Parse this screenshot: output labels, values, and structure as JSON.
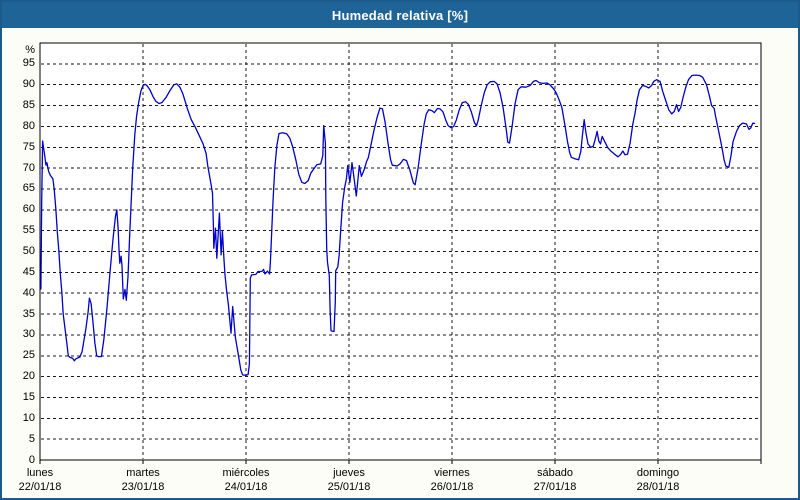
{
  "window": {
    "title": "Humedad relativa [%]"
  },
  "colors": {
    "titlebar": "#1e6496",
    "window_border": "#1b5a8a",
    "background": "#fbfdf6",
    "plot_background": "#ffffff",
    "plot_border": "#000000",
    "grid": "#1a1a1a",
    "line": "#0000cc",
    "label_text": "#000000",
    "title_text": "#ffffff"
  },
  "chart_data": {
    "type": "line",
    "title": "Humedad relativa [%]",
    "unit_label": "%",
    "ylabel": "%",
    "ylim": [
      0,
      100
    ],
    "xlim_hours": [
      0,
      168
    ],
    "y_tick_step": 5,
    "y_ticks": [
      0,
      5,
      10,
      15,
      20,
      25,
      30,
      35,
      40,
      45,
      50,
      55,
      60,
      65,
      70,
      75,
      80,
      85,
      90,
      95
    ],
    "grid": "dashed",
    "legend": "none",
    "x_day_labels": [
      {
        "day": "lunes",
        "date": "22/01/18"
      },
      {
        "day": "martes",
        "date": "23/01/18"
      },
      {
        "day": "miércoles",
        "date": "24/01/18"
      },
      {
        "day": "jueves",
        "date": "25/01/18"
      },
      {
        "day": "viernes",
        "date": "26/01/18"
      },
      {
        "day": "sábado",
        "date": "27/01/18"
      },
      {
        "day": "domingo",
        "date": "28/01/18"
      }
    ],
    "series": [
      {
        "name": "Humedad relativa",
        "color": "#0000cc",
        "points": [
          [
            0.2,
            41
          ],
          [
            0.4,
            62
          ],
          [
            0.6,
            76.5
          ],
          [
            1.1,
            73
          ],
          [
            1.4,
            70.7
          ],
          [
            1.6,
            71.3
          ],
          [
            2.0,
            69.2
          ],
          [
            2.4,
            68.3
          ],
          [
            3.0,
            67.4
          ],
          [
            3.3,
            65
          ],
          [
            3.7,
            60
          ],
          [
            4.0,
            55
          ],
          [
            4.4,
            50
          ],
          [
            4.7,
            45
          ],
          [
            5.1,
            40
          ],
          [
            5.4,
            35
          ],
          [
            6.0,
            30
          ],
          [
            6.6,
            25
          ],
          [
            7.0,
            24.6
          ],
          [
            7.6,
            24.4
          ],
          [
            8.0,
            23.8
          ],
          [
            8.4,
            24.3
          ],
          [
            9.3,
            24.7
          ],
          [
            9.8,
            26
          ],
          [
            10.2,
            28.5
          ],
          [
            10.7,
            31.5
          ],
          [
            11.2,
            35.5
          ],
          [
            11.5,
            38.8
          ],
          [
            11.9,
            37.5
          ],
          [
            12.3,
            33.5
          ],
          [
            12.8,
            28
          ],
          [
            13.2,
            25
          ],
          [
            13.6,
            24.8
          ],
          [
            14.3,
            24.8
          ],
          [
            14.9,
            29
          ],
          [
            15.6,
            36.5
          ],
          [
            16.3,
            45
          ],
          [
            17.0,
            53
          ],
          [
            17.6,
            58.5
          ],
          [
            17.9,
            60
          ],
          [
            18.2,
            55.6
          ],
          [
            18.4,
            50.5
          ],
          [
            18.6,
            47.2
          ],
          [
            18.9,
            48.9
          ],
          [
            19.1,
            46.5
          ],
          [
            19.4,
            38.6
          ],
          [
            19.8,
            40.9
          ],
          [
            20.1,
            38.3
          ],
          [
            20.5,
            44
          ],
          [
            20.9,
            54
          ],
          [
            21.3,
            63
          ],
          [
            21.6,
            70
          ],
          [
            22.1,
            78
          ],
          [
            22.5,
            82.5
          ],
          [
            23.0,
            85.8
          ],
          [
            23.5,
            88.5
          ],
          [
            24.0,
            89.8
          ],
          [
            24.5,
            90.1
          ],
          [
            24.9,
            89.8
          ],
          [
            25.6,
            88.8
          ],
          [
            26.3,
            87.2
          ],
          [
            27.0,
            86.0
          ],
          [
            27.7,
            85.5
          ],
          [
            28.4,
            85.7
          ],
          [
            29.4,
            87.0
          ],
          [
            30.3,
            88.6
          ],
          [
            31.2,
            90.0
          ],
          [
            31.9,
            90.2
          ],
          [
            32.6,
            89.4
          ],
          [
            33.3,
            87.8
          ],
          [
            34.3,
            84.4
          ],
          [
            35.2,
            81.7
          ],
          [
            36.1,
            80.0
          ],
          [
            37.0,
            78.0
          ],
          [
            38.0,
            75.8
          ],
          [
            38.7,
            73.5
          ],
          [
            39.1,
            70.5
          ],
          [
            39.7,
            67
          ],
          [
            40.2,
            64
          ],
          [
            40.4,
            56
          ],
          [
            40.5,
            50.8
          ],
          [
            40.9,
            55.6
          ],
          [
            41.2,
            48.4
          ],
          [
            41.8,
            59.2
          ],
          [
            42.2,
            49.2
          ],
          [
            42.5,
            54.8
          ],
          [
            42.9,
            47.6
          ],
          [
            43.1,
            44.4
          ],
          [
            43.5,
            40.4
          ],
          [
            43.9,
            37.2
          ],
          [
            44.5,
            30.4
          ],
          [
            44.9,
            36.8
          ],
          [
            45.5,
            29.5
          ],
          [
            46.1,
            26
          ],
          [
            46.8,
            21.6
          ],
          [
            47.2,
            20.4
          ],
          [
            48.0,
            20.3
          ],
          [
            48.5,
            20.5
          ],
          [
            48.8,
            23
          ],
          [
            49.0,
            43.6
          ],
          [
            49.3,
            44.4
          ],
          [
            50.3,
            44.5
          ],
          [
            50.8,
            45.2
          ],
          [
            51.7,
            45.2
          ],
          [
            52.1,
            45.7
          ],
          [
            52.4,
            44.6
          ],
          [
            53.0,
            45.3
          ],
          [
            53.5,
            44.6
          ],
          [
            53.7,
            48
          ],
          [
            53.9,
            52.5
          ],
          [
            54.3,
            62
          ],
          [
            54.7,
            70
          ],
          [
            55.2,
            75.5
          ],
          [
            55.7,
            78.3
          ],
          [
            56.6,
            78.5
          ],
          [
            57.5,
            78.2
          ],
          [
            58.2,
            77.2
          ],
          [
            58.9,
            75
          ],
          [
            59.6,
            72
          ],
          [
            60.3,
            68.5
          ],
          [
            61.0,
            66.6
          ],
          [
            61.7,
            66.3
          ],
          [
            62.5,
            67
          ],
          [
            63.1,
            68.8
          ],
          [
            63.8,
            69.8
          ],
          [
            64.5,
            70.8
          ],
          [
            65.4,
            71.0
          ],
          [
            65.9,
            73
          ],
          [
            66.1,
            80.2
          ],
          [
            66.5,
            76
          ],
          [
            66.6,
            63
          ],
          [
            66.8,
            50.6
          ],
          [
            67.0,
            47.4
          ],
          [
            67.4,
            44.2
          ],
          [
            67.6,
            36
          ],
          [
            67.8,
            31
          ],
          [
            68.5,
            30.8
          ],
          [
            68.8,
            38
          ],
          [
            68.9,
            45.4
          ],
          [
            69.4,
            46.3
          ],
          [
            69.7,
            49
          ],
          [
            70.0,
            54
          ],
          [
            70.5,
            61.8
          ],
          [
            71.0,
            65.4
          ],
          [
            71.4,
            67.4
          ],
          [
            71.7,
            70.6
          ],
          [
            72.2,
            66.6
          ],
          [
            72.7,
            71.3
          ],
          [
            73.2,
            67.5
          ],
          [
            73.7,
            63.3
          ],
          [
            74.4,
            70.6
          ],
          [
            74.9,
            68.0
          ],
          [
            75.5,
            69.5
          ],
          [
            76.1,
            71.6
          ],
          [
            76.5,
            72.5
          ],
          [
            77.1,
            75.5
          ],
          [
            77.8,
            79
          ],
          [
            78.5,
            82
          ],
          [
            79.2,
            84.4
          ],
          [
            79.8,
            84.2
          ],
          [
            80.4,
            81
          ],
          [
            81.1,
            75.8
          ],
          [
            81.7,
            72
          ],
          [
            82.1,
            70.7
          ],
          [
            83.2,
            70.5
          ],
          [
            83.9,
            71
          ],
          [
            84.7,
            72.1
          ],
          [
            85.4,
            71.8
          ],
          [
            86.2,
            69.5
          ],
          [
            87.0,
            66.4
          ],
          [
            87.4,
            66.0
          ],
          [
            88.1,
            70
          ],
          [
            88.8,
            75.5
          ],
          [
            89.5,
            80.5
          ],
          [
            90.0,
            83
          ],
          [
            90.6,
            84.0
          ],
          [
            91.3,
            83.8
          ],
          [
            91.9,
            83.3
          ],
          [
            92.6,
            84.3
          ],
          [
            93.2,
            84.2
          ],
          [
            93.9,
            83.5
          ],
          [
            94.5,
            81.6
          ],
          [
            95.1,
            80.2
          ],
          [
            95.8,
            79.7
          ],
          [
            96.4,
            80.0
          ],
          [
            97.0,
            81.5
          ],
          [
            97.7,
            84
          ],
          [
            98.4,
            85.7
          ],
          [
            99.2,
            85.9
          ],
          [
            99.8,
            85.3
          ],
          [
            100.5,
            83.5
          ],
          [
            101.2,
            81
          ],
          [
            101.7,
            80.1
          ],
          [
            102.1,
            81.5
          ],
          [
            102.8,
            85
          ],
          [
            103.5,
            88
          ],
          [
            104.2,
            90
          ],
          [
            104.9,
            90.7
          ],
          [
            105.8,
            90.8
          ],
          [
            106.5,
            90.2
          ],
          [
            107.2,
            88
          ],
          [
            107.9,
            84.5
          ],
          [
            108.6,
            79.5
          ],
          [
            109.0,
            76.2
          ],
          [
            109.4,
            76.0
          ],
          [
            110.0,
            80
          ],
          [
            110.7,
            85.5
          ],
          [
            111.4,
            88.8
          ],
          [
            112.1,
            89.5
          ],
          [
            113.2,
            89.4
          ],
          [
            114.2,
            89.8
          ],
          [
            115.0,
            90.8
          ],
          [
            115.6,
            91.0
          ],
          [
            116.3,
            90.5
          ],
          [
            117.2,
            90.3
          ],
          [
            118.1,
            90.4
          ],
          [
            118.8,
            90.0
          ],
          [
            119.5,
            89.2
          ],
          [
            120.2,
            88.2
          ],
          [
            120.9,
            86.5
          ],
          [
            121.6,
            84.5
          ],
          [
            122.3,
            80.3
          ],
          [
            122.9,
            76.5
          ],
          [
            123.4,
            73.8
          ],
          [
            123.8,
            72.6
          ],
          [
            124.7,
            72.2
          ],
          [
            125.5,
            72.0
          ],
          [
            126.0,
            74
          ],
          [
            126.4,
            78
          ],
          [
            126.8,
            81.6
          ],
          [
            127.2,
            78.5
          ],
          [
            127.7,
            75.8
          ],
          [
            128.3,
            75.0
          ],
          [
            128.9,
            75.2
          ],
          [
            129.4,
            77
          ],
          [
            129.8,
            78.8
          ],
          [
            130.2,
            76.5
          ],
          [
            130.6,
            75.8
          ],
          [
            131.0,
            77.6
          ],
          [
            131.6,
            76.3
          ],
          [
            132.3,
            74.9
          ],
          [
            133.1,
            74.0
          ],
          [
            133.9,
            73.3
          ],
          [
            134.7,
            72.7
          ],
          [
            135.3,
            73.3
          ],
          [
            135.8,
            74.1
          ],
          [
            136.3,
            73.2
          ],
          [
            136.9,
            73.3
          ],
          [
            137.5,
            76
          ],
          [
            138.1,
            80.4
          ],
          [
            138.7,
            83.5
          ],
          [
            139.1,
            86.2
          ],
          [
            139.7,
            88.8
          ],
          [
            140.4,
            89.8
          ],
          [
            141.2,
            89.6
          ],
          [
            141.8,
            89.2
          ],
          [
            142.5,
            89.8
          ],
          [
            143.0,
            90.8
          ],
          [
            143.7,
            91.2
          ],
          [
            144.5,
            90.8
          ],
          [
            145.1,
            88.4
          ],
          [
            145.8,
            86.2
          ],
          [
            146.5,
            84.0
          ],
          [
            147.2,
            83.0
          ],
          [
            147.8,
            83.6
          ],
          [
            148.3,
            85.2
          ],
          [
            148.8,
            83.6
          ],
          [
            149.3,
            84.5
          ],
          [
            149.9,
            87.2
          ],
          [
            150.5,
            89.5
          ],
          [
            151.1,
            91.2
          ],
          [
            151.9,
            92.2
          ],
          [
            152.8,
            92.3
          ],
          [
            153.7,
            92.2
          ],
          [
            154.4,
            91.8
          ],
          [
            155.3,
            90.0
          ],
          [
            156.0,
            87.2
          ],
          [
            156.5,
            85.0
          ],
          [
            157.1,
            84.3
          ],
          [
            157.4,
            82.5
          ],
          [
            157.9,
            80.0
          ],
          [
            158.4,
            77.5
          ],
          [
            158.9,
            75.0
          ],
          [
            159.4,
            72.0
          ],
          [
            159.8,
            70.5
          ],
          [
            160.5,
            70.2
          ],
          [
            161.0,
            73
          ],
          [
            161.5,
            76.4
          ],
          [
            162.3,
            78.8
          ],
          [
            163.0,
            80.2
          ],
          [
            163.7,
            80.8
          ],
          [
            164.6,
            80.6
          ],
          [
            165.2,
            79.3
          ],
          [
            165.6,
            79.6
          ],
          [
            166.1,
            80.8
          ],
          [
            166.5,
            80.7
          ]
        ]
      }
    ]
  }
}
